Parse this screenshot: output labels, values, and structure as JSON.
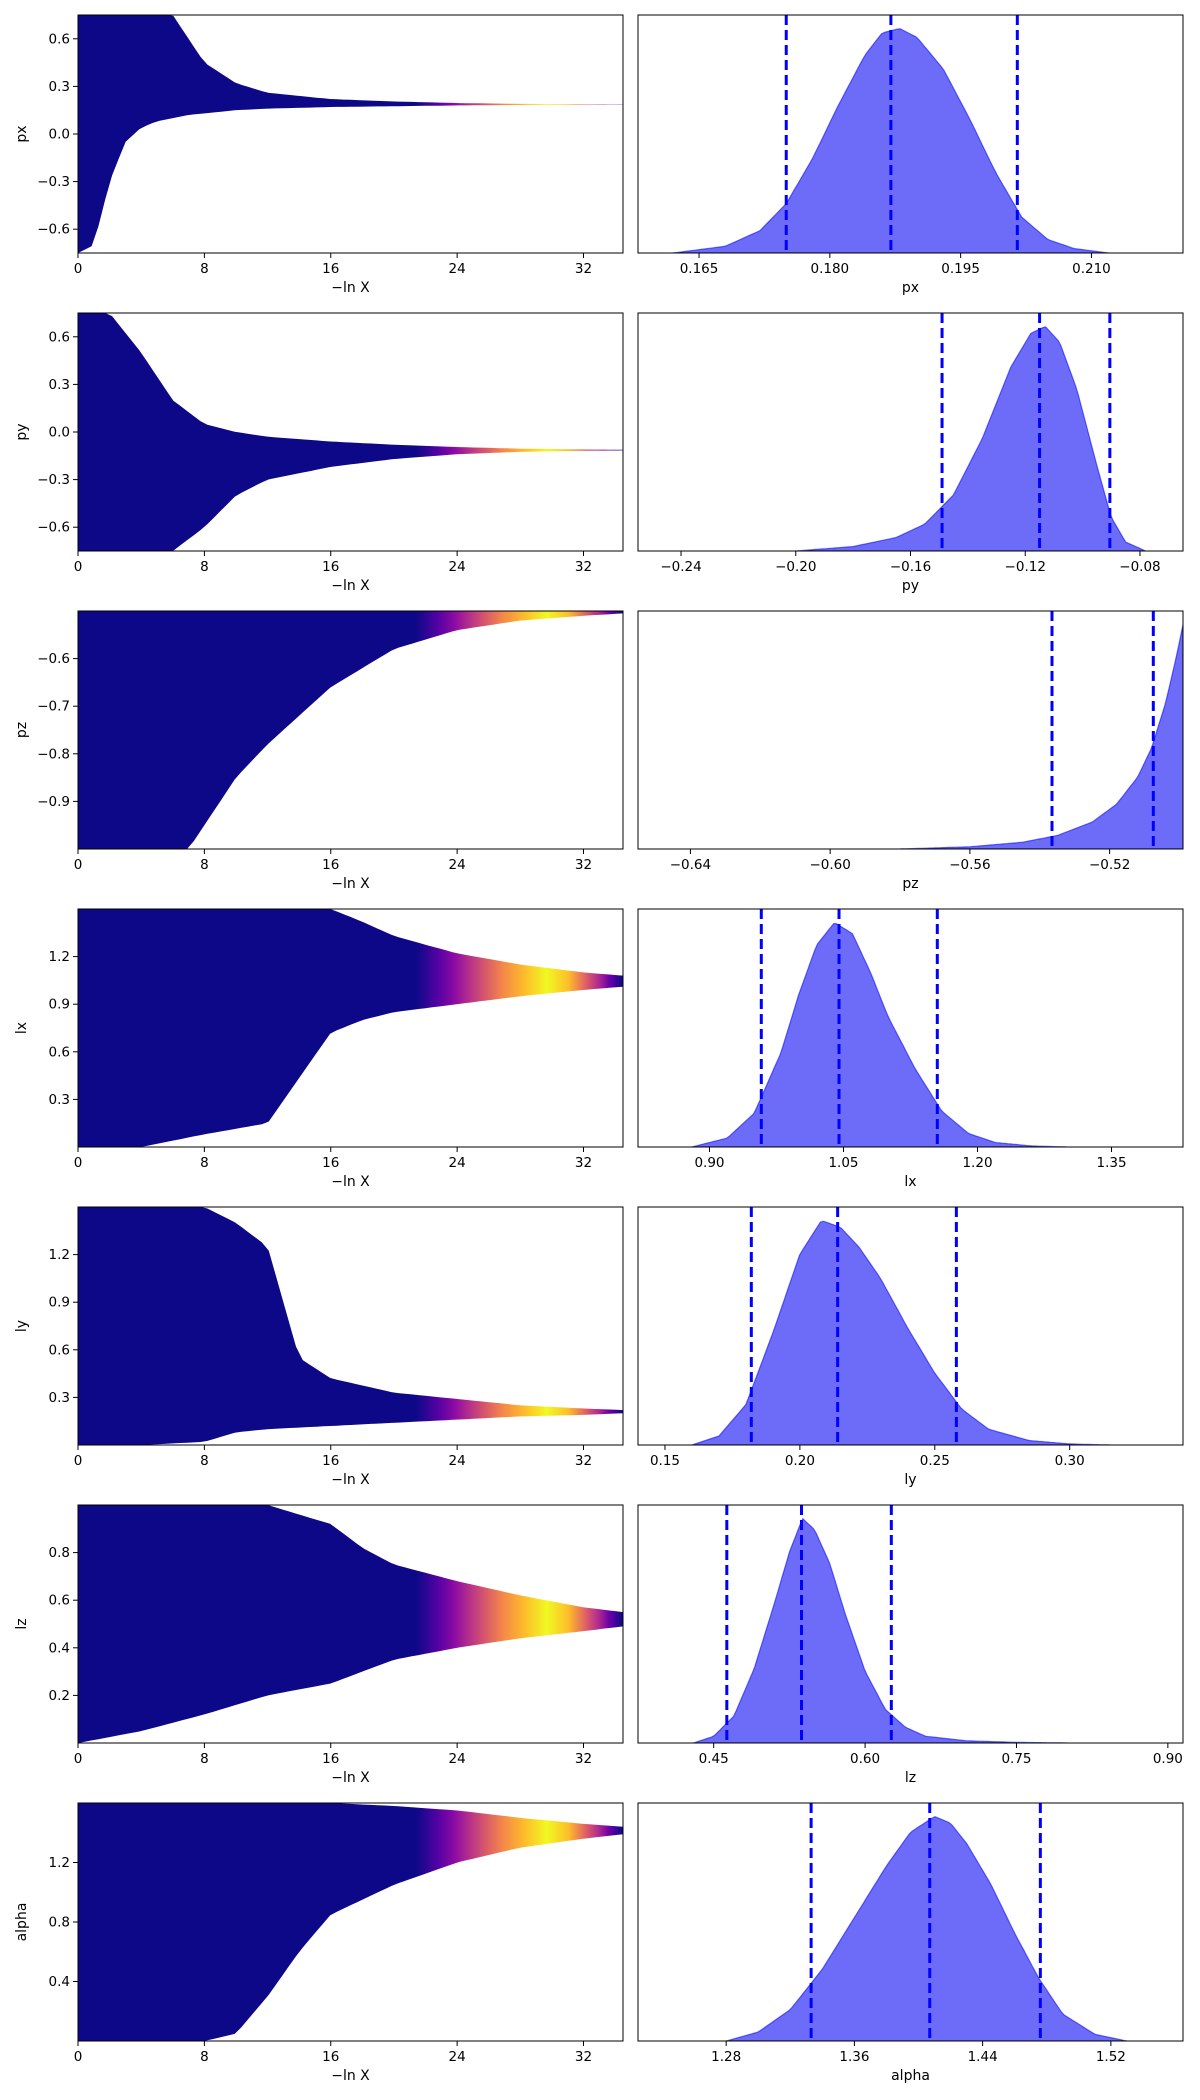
{
  "chart_data": [
    {
      "type": "scatter",
      "param": "px",
      "xlabel": "−ln X",
      "ylabel": "px",
      "xlim": [
        0,
        34.5
      ],
      "ylim": [
        -0.75,
        0.75
      ],
      "xticks": [
        0,
        8,
        16,
        24,
        32
      ],
      "yticks": [
        -0.6,
        -0.3,
        0.0,
        0.3,
        0.6
      ],
      "ytick_labels": [
        "−0.6",
        "−0.3",
        "0.0",
        "0.3",
        "0.6"
      ],
      "colormap": "plasma",
      "envelope": {
        "x": [
          0,
          1,
          2,
          3,
          4,
          5,
          6,
          7,
          8,
          10,
          12,
          16,
          20,
          24,
          28,
          32,
          34.5
        ],
        "upper": [
          0.75,
          0.75,
          0.75,
          0.75,
          0.75,
          0.75,
          0.75,
          0.6,
          0.45,
          0.32,
          0.26,
          0.22,
          0.205,
          0.195,
          0.19,
          0.188,
          0.187
        ],
        "lower": [
          -0.75,
          -0.7,
          -0.3,
          -0.05,
          0.04,
          0.08,
          0.1,
          0.12,
          0.13,
          0.15,
          0.16,
          0.17,
          0.175,
          0.18,
          0.183,
          0.185,
          0.186
        ]
      }
    },
    {
      "type": "area",
      "param": "px",
      "xlabel": "px",
      "xlim": [
        0.158,
        0.2205
      ],
      "xticks": [
        0.165,
        0.18,
        0.195,
        0.21
      ],
      "xtick_labels": [
        "0.165",
        "0.180",
        "0.195",
        "0.210"
      ],
      "quantiles": [
        0.175,
        0.187,
        0.2015
      ],
      "density": {
        "x": [
          0.162,
          0.168,
          0.172,
          0.175,
          0.178,
          0.181,
          0.184,
          0.186,
          0.188,
          0.19,
          0.193,
          0.196,
          0.199,
          0.202,
          0.205,
          0.208,
          0.212
        ],
        "y": [
          0.0,
          0.03,
          0.1,
          0.22,
          0.42,
          0.66,
          0.88,
          0.98,
          1.0,
          0.96,
          0.82,
          0.6,
          0.36,
          0.16,
          0.06,
          0.02,
          0.0
        ]
      },
      "fill_color": "#6464f8",
      "line_color": "#0000ff"
    },
    {
      "type": "scatter",
      "param": "py",
      "xlabel": "−ln X",
      "ylabel": "py",
      "xlim": [
        0,
        34.5
      ],
      "ylim": [
        -0.75,
        0.75
      ],
      "xticks": [
        0,
        8,
        16,
        24,
        32
      ],
      "yticks": [
        -0.6,
        -0.3,
        0.0,
        0.3,
        0.6
      ],
      "ytick_labels": [
        "−0.6",
        "−0.3",
        "0.0",
        "0.3",
        "0.6"
      ],
      "colormap": "plasma",
      "envelope": {
        "x": [
          0,
          2,
          4,
          6,
          8,
          10,
          12,
          16,
          20,
          24,
          28,
          32,
          34.5
        ],
        "upper": [
          0.75,
          0.75,
          0.5,
          0.2,
          0.05,
          0.0,
          -0.03,
          -0.06,
          -0.08,
          -0.095,
          -0.105,
          -0.11,
          -0.112
        ],
        "lower": [
          -0.75,
          -0.75,
          -0.75,
          -0.75,
          -0.6,
          -0.4,
          -0.3,
          -0.22,
          -0.17,
          -0.14,
          -0.125,
          -0.118,
          -0.116
        ]
      }
    },
    {
      "type": "area",
      "param": "py",
      "xlabel": "py",
      "xlim": [
        -0.255,
        -0.065
      ],
      "xticks": [
        -0.24,
        -0.2,
        -0.16,
        -0.12,
        -0.08
      ],
      "xtick_labels": [
        "−0.24",
        "−0.20",
        "−0.16",
        "−0.12",
        "−0.08"
      ],
      "quantiles": [
        -0.149,
        -0.115,
        -0.0905
      ],
      "density": {
        "x": [
          -0.2,
          -0.18,
          -0.165,
          -0.155,
          -0.145,
          -0.135,
          -0.125,
          -0.118,
          -0.113,
          -0.108,
          -0.102,
          -0.095,
          -0.09,
          -0.085,
          -0.078
        ],
        "y": [
          0.0,
          0.02,
          0.06,
          0.12,
          0.25,
          0.5,
          0.82,
          0.97,
          1.0,
          0.93,
          0.72,
          0.38,
          0.15,
          0.04,
          0.0
        ]
      },
      "fill_color": "#6464f8",
      "line_color": "#0000ff"
    },
    {
      "type": "scatter",
      "param": "pz",
      "xlabel": "−ln X",
      "ylabel": "pz",
      "xlim": [
        0,
        34.5
      ],
      "ylim": [
        -1.0,
        -0.5
      ],
      "xticks": [
        0,
        8,
        16,
        24,
        32
      ],
      "yticks": [
        -0.9,
        -0.8,
        -0.7,
        -0.6
      ],
      "ytick_labels": [
        "−0.9",
        "−0.8",
        "−0.7",
        "−0.6"
      ],
      "colormap": "plasma",
      "envelope": {
        "x": [
          0,
          4,
          7,
          8,
          10,
          12,
          14,
          16,
          18,
          20,
          24,
          28,
          32,
          34.5
        ],
        "upper": [
          -0.5,
          -0.5,
          -0.5,
          -0.5,
          -0.5,
          -0.5,
          -0.5,
          -0.5,
          -0.5,
          -0.5,
          -0.5,
          -0.5,
          -0.5,
          -0.5
        ],
        "lower": [
          -1.0,
          -1.0,
          -1.0,
          -0.95,
          -0.85,
          -0.78,
          -0.72,
          -0.66,
          -0.62,
          -0.58,
          -0.54,
          -0.52,
          -0.51,
          -0.505
        ]
      }
    },
    {
      "type": "area",
      "param": "pz",
      "xlabel": "pz",
      "xlim": [
        -0.655,
        -0.499
      ],
      "xticks": [
        -0.64,
        -0.6,
        -0.56,
        -0.52
      ],
      "xtick_labels": [
        "−0.64",
        "−0.60",
        "−0.56",
        "−0.52"
      ],
      "quantiles": [
        -0.5365,
        -0.5075
      ],
      "density": {
        "x": [
          -0.58,
          -0.56,
          -0.545,
          -0.535,
          -0.525,
          -0.518,
          -0.512,
          -0.508,
          -0.504,
          -0.501,
          -0.499
        ],
        "y": [
          0.0,
          0.01,
          0.03,
          0.06,
          0.12,
          0.2,
          0.32,
          0.45,
          0.65,
          0.85,
          1.0
        ]
      },
      "fill_color": "#6464f8",
      "line_color": "#0000ff"
    },
    {
      "type": "scatter",
      "param": "lx",
      "xlabel": "−ln X",
      "ylabel": "lx",
      "xlim": [
        0,
        34.5
      ],
      "ylim": [
        0.0,
        1.5
      ],
      "xticks": [
        0,
        8,
        16,
        24,
        32
      ],
      "yticks": [
        0.3,
        0.6,
        0.9,
        1.2
      ],
      "ytick_labels": [
        "0.3",
        "0.6",
        "0.9",
        "1.2"
      ],
      "colormap": "plasma",
      "envelope": {
        "x": [
          0,
          4,
          8,
          12,
          16,
          18,
          20,
          24,
          28,
          32,
          34.5
        ],
        "upper": [
          1.5,
          1.5,
          1.5,
          1.5,
          1.5,
          1.42,
          1.33,
          1.22,
          1.15,
          1.1,
          1.08
        ],
        "lower": [
          0.0,
          0.0,
          0.08,
          0.15,
          0.72,
          0.8,
          0.85,
          0.9,
          0.95,
          0.99,
          1.01
        ]
      }
    },
    {
      "type": "area",
      "param": "lx",
      "xlabel": "lx",
      "xlim": [
        0.82,
        1.43
      ],
      "xticks": [
        0.9,
        1.05,
        1.2,
        1.35
      ],
      "xtick_labels": [
        "0.90",
        "1.05",
        "1.20",
        "1.35"
      ],
      "quantiles": [
        0.958,
        1.045,
        1.155
      ],
      "density": {
        "x": [
          0.88,
          0.92,
          0.95,
          0.98,
          1.0,
          1.02,
          1.04,
          1.06,
          1.08,
          1.1,
          1.13,
          1.16,
          1.19,
          1.22,
          1.26,
          1.3
        ],
        "y": [
          0.0,
          0.04,
          0.15,
          0.42,
          0.68,
          0.9,
          1.0,
          0.95,
          0.78,
          0.58,
          0.35,
          0.16,
          0.06,
          0.02,
          0.005,
          0.0
        ]
      },
      "fill_color": "#6464f8",
      "line_color": "#0000ff"
    },
    {
      "type": "scatter",
      "param": "ly",
      "xlabel": "−ln X",
      "ylabel": "ly",
      "xlim": [
        0,
        34.5
      ],
      "ylim": [
        0.0,
        1.5
      ],
      "xticks": [
        0,
        8,
        16,
        24,
        32
      ],
      "yticks": [
        0.3,
        0.6,
        0.9,
        1.2
      ],
      "ytick_labels": [
        "0.3",
        "0.6",
        "0.9",
        "1.2"
      ],
      "colormap": "plasma",
      "envelope": {
        "x": [
          0,
          4,
          8,
          10,
          12,
          14,
          16,
          20,
          24,
          28,
          32,
          34.5
        ],
        "upper": [
          1.5,
          1.5,
          1.5,
          1.4,
          1.25,
          0.55,
          0.42,
          0.33,
          0.29,
          0.25,
          0.23,
          0.22
        ],
        "lower": [
          0.0,
          0.0,
          0.02,
          0.08,
          0.1,
          0.11,
          0.12,
          0.14,
          0.16,
          0.18,
          0.19,
          0.2
        ]
      }
    },
    {
      "type": "area",
      "param": "ly",
      "xlabel": "ly",
      "xlim": [
        0.14,
        0.342
      ],
      "xticks": [
        0.15,
        0.2,
        0.25,
        0.3
      ],
      "xtick_labels": [
        "0.15",
        "0.20",
        "0.25",
        "0.30"
      ],
      "quantiles": [
        0.182,
        0.214,
        0.258
      ],
      "density": {
        "x": [
          0.16,
          0.17,
          0.18,
          0.19,
          0.2,
          0.208,
          0.215,
          0.222,
          0.23,
          0.24,
          0.25,
          0.26,
          0.27,
          0.285,
          0.3,
          0.315
        ],
        "y": [
          0.0,
          0.04,
          0.18,
          0.5,
          0.85,
          1.0,
          0.97,
          0.88,
          0.74,
          0.52,
          0.32,
          0.16,
          0.07,
          0.02,
          0.005,
          0.0
        ]
      },
      "fill_color": "#6464f8",
      "line_color": "#0000ff"
    },
    {
      "type": "scatter",
      "param": "lz",
      "xlabel": "−ln X",
      "ylabel": "lz",
      "xlim": [
        0,
        34.5
      ],
      "ylim": [
        0.0,
        1.0
      ],
      "xticks": [
        0,
        8,
        16,
        24,
        32
      ],
      "yticks": [
        0.2,
        0.4,
        0.6,
        0.8
      ],
      "ytick_labels": [
        "0.2",
        "0.4",
        "0.6",
        "0.8"
      ],
      "colormap": "plasma",
      "envelope": {
        "x": [
          0,
          4,
          8,
          12,
          16,
          18,
          20,
          24,
          28,
          32,
          34.5
        ],
        "upper": [
          1.0,
          1.0,
          1.0,
          1.0,
          0.92,
          0.82,
          0.75,
          0.68,
          0.62,
          0.57,
          0.55
        ],
        "lower": [
          0.0,
          0.05,
          0.12,
          0.2,
          0.25,
          0.3,
          0.35,
          0.4,
          0.44,
          0.47,
          0.49
        ]
      }
    },
    {
      "type": "area",
      "param": "lz",
      "xlabel": "lz",
      "xlim": [
        0.375,
        0.915
      ],
      "xticks": [
        0.45,
        0.6,
        0.75,
        0.9
      ],
      "xtick_labels": [
        "0.45",
        "0.60",
        "0.75",
        "0.90"
      ],
      "quantiles": [
        0.463,
        0.537,
        0.626
      ],
      "density": {
        "x": [
          0.43,
          0.45,
          0.47,
          0.49,
          0.51,
          0.525,
          0.538,
          0.55,
          0.565,
          0.58,
          0.6,
          0.62,
          0.64,
          0.66,
          0.7,
          0.75,
          0.8
        ],
        "y": [
          0.0,
          0.03,
          0.12,
          0.33,
          0.62,
          0.85,
          1.0,
          0.95,
          0.8,
          0.58,
          0.32,
          0.15,
          0.07,
          0.03,
          0.01,
          0.003,
          0.0
        ]
      },
      "fill_color": "#6464f8",
      "line_color": "#0000ff"
    },
    {
      "type": "scatter",
      "param": "alpha",
      "xlabel": "−ln X",
      "ylabel": "alpha",
      "xlim": [
        0,
        34.5
      ],
      "ylim": [
        0.0,
        1.6
      ],
      "xticks": [
        0,
        8,
        16,
        24,
        32
      ],
      "yticks": [
        0.4,
        0.8,
        1.2
      ],
      "ytick_labels": [
        "0.4",
        "0.8",
        "1.2"
      ],
      "colormap": "plasma",
      "envelope": {
        "x": [
          0,
          4,
          8,
          10,
          12,
          14,
          16,
          20,
          24,
          28,
          32,
          34.5
        ],
        "upper": [
          1.6,
          1.6,
          1.6,
          1.6,
          1.6,
          1.6,
          1.6,
          1.58,
          1.55,
          1.5,
          1.46,
          1.44
        ],
        "lower": [
          0.0,
          0.0,
          0.0,
          0.05,
          0.3,
          0.6,
          0.85,
          1.05,
          1.2,
          1.3,
          1.36,
          1.39
        ]
      }
    },
    {
      "type": "area",
      "param": "alpha",
      "xlabel": "alpha",
      "xlim": [
        1.225,
        1.565
      ],
      "xticks": [
        1.28,
        1.36,
        1.44,
        1.52
      ],
      "xtick_labels": [
        "1.28",
        "1.36",
        "1.44",
        "1.52"
      ],
      "quantiles": [
        1.333,
        1.407,
        1.476
      ],
      "density": {
        "x": [
          1.28,
          1.3,
          1.32,
          1.34,
          1.36,
          1.38,
          1.395,
          1.41,
          1.42,
          1.43,
          1.445,
          1.46,
          1.475,
          1.49,
          1.51,
          1.53
        ],
        "y": [
          0.0,
          0.04,
          0.14,
          0.32,
          0.55,
          0.78,
          0.93,
          1.0,
          0.97,
          0.88,
          0.7,
          0.48,
          0.28,
          0.12,
          0.03,
          0.0
        ]
      },
      "fill_color": "#6464f8",
      "line_color": "#0000ff"
    }
  ]
}
